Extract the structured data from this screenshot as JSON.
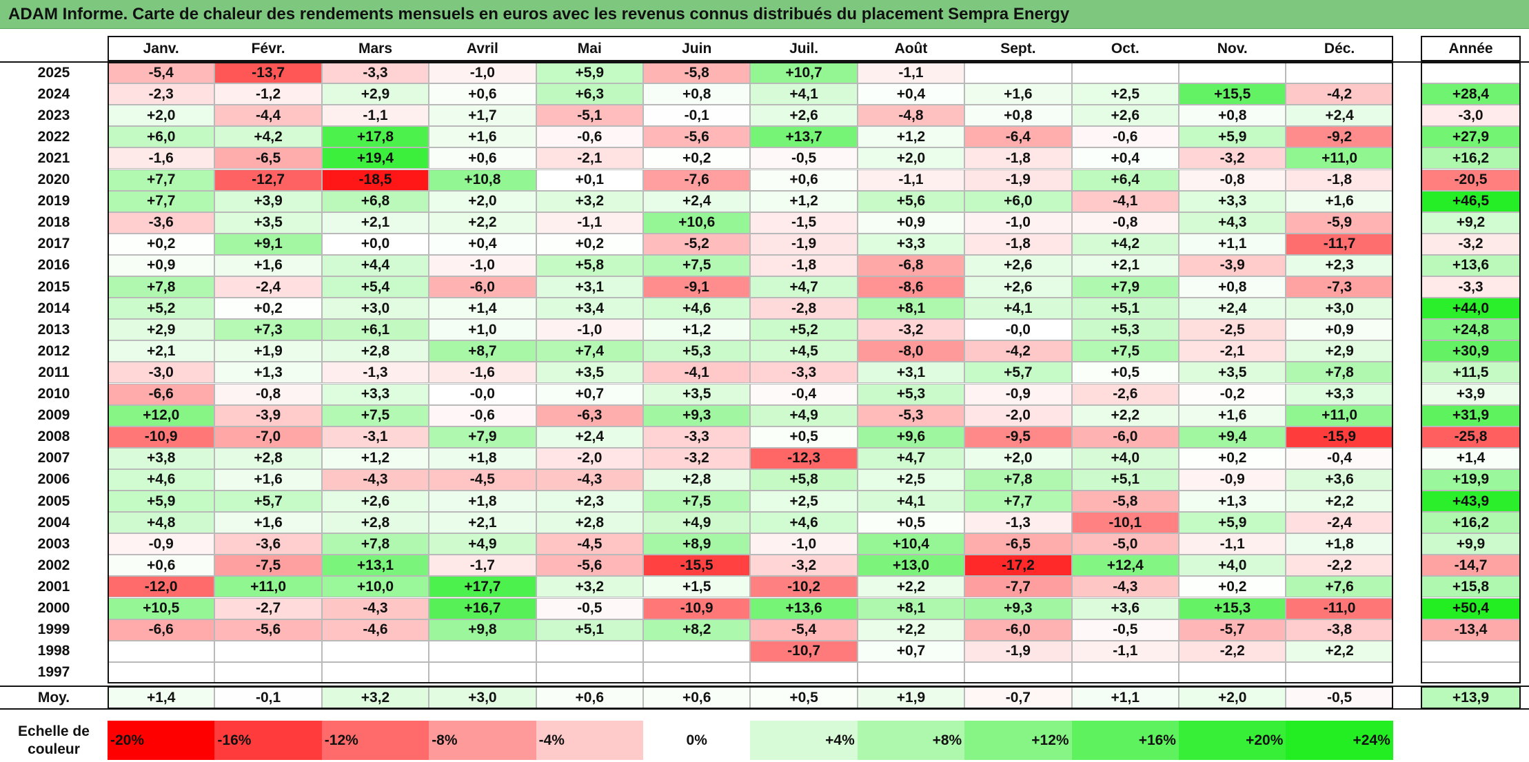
{
  "title": "ADAM Informe. Carte de chaleur des rendements mensuels en euros avec les revenus connus distribués du placement Sempra Energy",
  "chart_data": {
    "type": "heatmap",
    "columns": [
      "Janv.",
      "Févr.",
      "Mars",
      "Avril",
      "Mai",
      "Juin",
      "Juil.",
      "Août",
      "Sept.",
      "Oct.",
      "Nov.",
      "Déc."
    ],
    "year_column_label": "Année",
    "rows": [
      {
        "year": "2025",
        "months": [
          "-5,4",
          "-13,7",
          "-3,3",
          "-1,0",
          "+5,9",
          "-5,8",
          "+10,7",
          "-1,1",
          "",
          "",
          "",
          ""
        ],
        "annual": ""
      },
      {
        "year": "2024",
        "months": [
          "-2,3",
          "-1,2",
          "+2,9",
          "+0,6",
          "+6,3",
          "+0,8",
          "+4,1",
          "+0,4",
          "+1,6",
          "+2,5",
          "+15,5",
          "-4,2"
        ],
        "annual": "+28,4"
      },
      {
        "year": "2023",
        "months": [
          "+2,0",
          "-4,4",
          "-1,1",
          "+1,7",
          "-5,1",
          "-0,1",
          "+2,6",
          "-4,8",
          "+0,8",
          "+2,6",
          "+0,8",
          "+2,4"
        ],
        "annual": "-3,0"
      },
      {
        "year": "2022",
        "months": [
          "+6,0",
          "+4,2",
          "+17,8",
          "+1,6",
          "-0,6",
          "-5,6",
          "+13,7",
          "+1,2",
          "-6,4",
          "-0,6",
          "+5,9",
          "-9,2"
        ],
        "annual": "+27,9"
      },
      {
        "year": "2021",
        "months": [
          "-1,6",
          "-6,5",
          "+19,4",
          "+0,6",
          "-2,1",
          "+0,2",
          "-0,5",
          "+2,0",
          "-1,8",
          "+0,4",
          "-3,2",
          "+11,0"
        ],
        "annual": "+16,2"
      },
      {
        "year": "2020",
        "months": [
          "+7,7",
          "-12,7",
          "-18,5",
          "+10,8",
          "+0,1",
          "-7,6",
          "+0,6",
          "-1,1",
          "-1,9",
          "+6,4",
          "-0,8",
          "-1,8"
        ],
        "annual": "-20,5"
      },
      {
        "year": "2019",
        "months": [
          "+7,7",
          "+3,9",
          "+6,8",
          "+2,0",
          "+3,2",
          "+2,4",
          "+1,2",
          "+5,6",
          "+6,0",
          "-4,1",
          "+3,3",
          "+1,6"
        ],
        "annual": "+46,5"
      },
      {
        "year": "2018",
        "months": [
          "-3,6",
          "+3,5",
          "+2,1",
          "+2,2",
          "-1,1",
          "+10,6",
          "-1,5",
          "+0,9",
          "-1,0",
          "-0,8",
          "+4,3",
          "-5,9"
        ],
        "annual": "+9,2"
      },
      {
        "year": "2017",
        "months": [
          "+0,2",
          "+9,1",
          "+0,0",
          "+0,4",
          "+0,2",
          "-5,2",
          "-1,9",
          "+3,3",
          "-1,8",
          "+4,2",
          "+1,1",
          "-11,7"
        ],
        "annual": "-3,2"
      },
      {
        "year": "2016",
        "months": [
          "+0,9",
          "+1,6",
          "+4,4",
          "-1,0",
          "+5,8",
          "+7,5",
          "-1,8",
          "-6,8",
          "+2,6",
          "+2,1",
          "-3,9",
          "+2,3"
        ],
        "annual": "+13,6"
      },
      {
        "year": "2015",
        "months": [
          "+7,8",
          "-2,4",
          "+5,4",
          "-6,0",
          "+3,1",
          "-9,1",
          "+4,7",
          "-8,6",
          "+2,6",
          "+7,9",
          "+0,8",
          "-7,3"
        ],
        "annual": "-3,3"
      },
      {
        "year": "2014",
        "months": [
          "+5,2",
          "+0,2",
          "+3,0",
          "+1,4",
          "+3,4",
          "+4,6",
          "-2,8",
          "+8,1",
          "+4,1",
          "+5,1",
          "+2,4",
          "+3,0"
        ],
        "annual": "+44,0"
      },
      {
        "year": "2013",
        "months": [
          "+2,9",
          "+7,3",
          "+6,1",
          "+1,0",
          "-1,0",
          "+1,2",
          "+5,2",
          "-3,2",
          "-0,0",
          "+5,3",
          "-2,5",
          "+0,9"
        ],
        "annual": "+24,8"
      },
      {
        "year": "2012",
        "months": [
          "+2,1",
          "+1,9",
          "+2,8",
          "+8,7",
          "+7,4",
          "+5,3",
          "+4,5",
          "-8,0",
          "-4,2",
          "+7,5",
          "-2,1",
          "+2,9"
        ],
        "annual": "+30,9"
      },
      {
        "year": "2011",
        "months": [
          "-3,0",
          "+1,3",
          "-1,3",
          "-1,6",
          "+3,5",
          "-4,1",
          "-3,3",
          "+3,1",
          "+5,7",
          "+0,5",
          "+3,5",
          "+7,8"
        ],
        "annual": "+11,5"
      },
      {
        "year": "2010",
        "months": [
          "-6,6",
          "-0,8",
          "+3,3",
          "-0,0",
          "+0,7",
          "+3,5",
          "-0,4",
          "+5,3",
          "-0,9",
          "-2,6",
          "-0,2",
          "+3,3"
        ],
        "annual": "+3,9"
      },
      {
        "year": "2009",
        "months": [
          "+12,0",
          "-3,9",
          "+7,5",
          "-0,6",
          "-6,3",
          "+9,3",
          "+4,9",
          "-5,3",
          "-2,0",
          "+2,2",
          "+1,6",
          "+11,0"
        ],
        "annual": "+31,9"
      },
      {
        "year": "2008",
        "months": [
          "-10,9",
          "-7,0",
          "-3,1",
          "+7,9",
          "+2,4",
          "-3,3",
          "+0,5",
          "+9,6",
          "-9,5",
          "-6,0",
          "+9,4",
          "-15,9"
        ],
        "annual": "-25,8"
      },
      {
        "year": "2007",
        "months": [
          "+3,8",
          "+2,8",
          "+1,2",
          "+1,8",
          "-2,0",
          "-3,2",
          "-12,3",
          "+4,7",
          "+2,0",
          "+4,0",
          "+0,2",
          "-0,4"
        ],
        "annual": "+1,4"
      },
      {
        "year": "2006",
        "months": [
          "+4,6",
          "+1,6",
          "-4,3",
          "-4,5",
          "-4,3",
          "+2,8",
          "+5,8",
          "+2,5",
          "+7,8",
          "+5,1",
          "-0,9",
          "+3,6"
        ],
        "annual": "+19,9"
      },
      {
        "year": "2005",
        "months": [
          "+5,9",
          "+5,7",
          "+2,6",
          "+1,8",
          "+2,3",
          "+7,5",
          "+2,5",
          "+4,1",
          "+7,7",
          "-5,8",
          "+1,3",
          "+2,2"
        ],
        "annual": "+43,9"
      },
      {
        "year": "2004",
        "months": [
          "+4,8",
          "+1,6",
          "+2,8",
          "+2,1",
          "+2,8",
          "+4,9",
          "+4,6",
          "+0,5",
          "-1,3",
          "-10,1",
          "+5,9",
          "-2,4"
        ],
        "annual": "+16,2"
      },
      {
        "year": "2003",
        "months": [
          "-0,9",
          "-3,6",
          "+7,8",
          "+4,9",
          "-4,5",
          "+8,9",
          "-1,0",
          "+10,4",
          "-6,5",
          "-5,0",
          "-1,1",
          "+1,8"
        ],
        "annual": "+9,9"
      },
      {
        "year": "2002",
        "months": [
          "+0,6",
          "-7,5",
          "+13,1",
          "-1,7",
          "-5,6",
          "-15,5",
          "-3,2",
          "+13,0",
          "-17,2",
          "+12,4",
          "+4,0",
          "-2,2"
        ],
        "annual": "-14,7"
      },
      {
        "year": "2001",
        "months": [
          "-12,0",
          "+11,0",
          "+10,0",
          "+17,7",
          "+3,2",
          "+1,5",
          "-10,2",
          "+2,2",
          "-7,7",
          "-4,3",
          "+0,2",
          "+7,6"
        ],
        "annual": "+15,8"
      },
      {
        "year": "2000",
        "months": [
          "+10,5",
          "-2,7",
          "-4,3",
          "+16,7",
          "-0,5",
          "-10,9",
          "+13,6",
          "+8,1",
          "+9,3",
          "+3,6",
          "+15,3",
          "-11,0"
        ],
        "annual": "+50,4"
      },
      {
        "year": "1999",
        "months": [
          "-6,6",
          "-5,6",
          "-4,6",
          "+9,8",
          "+5,1",
          "+8,2",
          "-5,4",
          "+2,2",
          "-6,0",
          "-0,5",
          "-5,7",
          "-3,8"
        ],
        "annual": "-13,4"
      },
      {
        "year": "1998",
        "months": [
          "",
          "",
          "",
          "",
          "",
          "",
          "-10,7",
          "+0,7",
          "-1,9",
          "-1,1",
          "-2,2",
          "+2,2"
        ],
        "annual": ""
      },
      {
        "year": "1997",
        "months": [
          "",
          "",
          "",
          "",
          "",
          "",
          "",
          "",
          "",
          "",
          "",
          ""
        ],
        "annual": ""
      }
    ],
    "average": {
      "label": "Moy.",
      "months": [
        "+1,4",
        "-0,1",
        "+3,2",
        "+3,0",
        "+0,6",
        "+0,6",
        "+0,5",
        "+1,9",
        "-0,7",
        "+1,1",
        "+2,0",
        "-0,5"
      ],
      "annual": "+13,9"
    },
    "color_scale": {
      "label": "Echelle de couleur",
      "stops": [
        "-20%",
        "-16%",
        "-12%",
        "-8%",
        "-4%",
        "0%",
        "+4%",
        "+8%",
        "+12%",
        "+16%",
        "+20%",
        "+24%"
      ],
      "values": [
        -20,
        -16,
        -12,
        -8,
        -4,
        0,
        4,
        8,
        12,
        16,
        20,
        24
      ],
      "colors": [
        "#ff0000",
        "#ff3b3b",
        "#ff6a6a",
        "#ff9a9a",
        "#ffcaca",
        "#ffffff",
        "#d7fbd7",
        "#aef8ae",
        "#86f586",
        "#5ef25e",
        "#36ef36",
        "#22ee22"
      ]
    }
  }
}
